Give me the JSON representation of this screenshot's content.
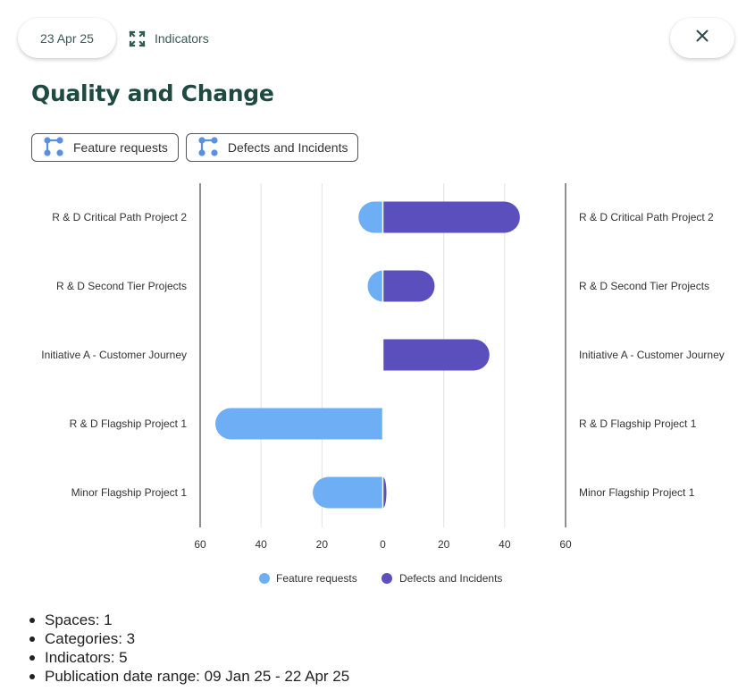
{
  "header": {
    "date": "23 Apr 25",
    "indicators_label": "Indicators",
    "close_label": "close"
  },
  "page": {
    "title": "Quality and Change"
  },
  "chips": [
    {
      "label": "Feature requests"
    },
    {
      "label": "Defects and Incidents"
    }
  ],
  "colors": {
    "feature_requests": "#6daef5",
    "defects": "#5b4fbe",
    "icon_blue": "#5b8fe0"
  },
  "chart_data": {
    "type": "bar",
    "orientation": "horizontal-diverging",
    "categories": [
      "R & D Critical Path Project 2",
      "R & D Second Tier Projects",
      "Initiative A - Customer Journey",
      "R & D Flagship Project 1",
      "Minor Flagship Project 1"
    ],
    "series": [
      {
        "name": "Feature requests",
        "direction": "left",
        "values": [
          8,
          5,
          0,
          55,
          23
        ]
      },
      {
        "name": "Defects and Incidents",
        "direction": "right",
        "values": [
          45,
          17,
          35,
          0,
          1
        ]
      }
    ],
    "xlim": [
      -60,
      60
    ],
    "xticks": [
      "60",
      "40",
      "20",
      "0",
      "20",
      "40",
      "60"
    ],
    "grid": true,
    "legend": "bottom",
    "category_labels": "both-sides"
  },
  "stats": [
    {
      "text": "Spaces: 1"
    },
    {
      "text": "Categories: 3"
    },
    {
      "text": "Indicators: 5"
    },
    {
      "text": "Publication date range: 09 Jan 25 - 22 Apr 25"
    }
  ]
}
